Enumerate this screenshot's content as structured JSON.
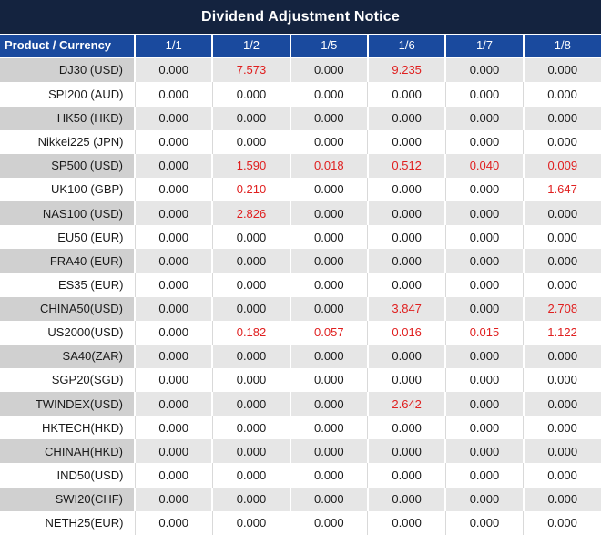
{
  "title": "Dividend Adjustment Notice",
  "colors": {
    "title_bg": "#14233f",
    "header_bg": "#1a4a9e",
    "header_text": "#ffffff",
    "alt_row_label_bg": "#d0d0d0",
    "alt_row_data_bg": "#e6e6e6",
    "white_row_bg": "#ffffff",
    "grid_line": "#d9d9d9",
    "value_text": "#1a1a1a",
    "highlight_red": "#e01f1f"
  },
  "table": {
    "product_header": "Product / Currency",
    "dates": [
      "1/1",
      "1/2",
      "1/5",
      "1/6",
      "1/7",
      "1/8"
    ],
    "rows": [
      {
        "product": "DJ30 (USD)",
        "values": [
          "0.000",
          "7.573",
          "0.000",
          "9.235",
          "0.000",
          "0.000"
        ],
        "red": [
          false,
          true,
          false,
          true,
          false,
          false
        ]
      },
      {
        "product": "SPI200 (AUD)",
        "values": [
          "0.000",
          "0.000",
          "0.000",
          "0.000",
          "0.000",
          "0.000"
        ],
        "red": [
          false,
          false,
          false,
          false,
          false,
          false
        ]
      },
      {
        "product": "HK50 (HKD)",
        "values": [
          "0.000",
          "0.000",
          "0.000",
          "0.000",
          "0.000",
          "0.000"
        ],
        "red": [
          false,
          false,
          false,
          false,
          false,
          false
        ]
      },
      {
        "product": "Nikkei225 (JPN)",
        "values": [
          "0.000",
          "0.000",
          "0.000",
          "0.000",
          "0.000",
          "0.000"
        ],
        "red": [
          false,
          false,
          false,
          false,
          false,
          false
        ]
      },
      {
        "product": "SP500 (USD)",
        "values": [
          "0.000",
          "1.590",
          "0.018",
          "0.512",
          "0.040",
          "0.009"
        ],
        "red": [
          false,
          true,
          true,
          true,
          true,
          true
        ]
      },
      {
        "product": "UK100 (GBP)",
        "values": [
          "0.000",
          "0.210",
          "0.000",
          "0.000",
          "0.000",
          "1.647"
        ],
        "red": [
          false,
          true,
          false,
          false,
          false,
          true
        ]
      },
      {
        "product": "NAS100 (USD)",
        "values": [
          "0.000",
          "2.826",
          "0.000",
          "0.000",
          "0.000",
          "0.000"
        ],
        "red": [
          false,
          true,
          false,
          false,
          false,
          false
        ]
      },
      {
        "product": "EU50 (EUR)",
        "values": [
          "0.000",
          "0.000",
          "0.000",
          "0.000",
          "0.000",
          "0.000"
        ],
        "red": [
          false,
          false,
          false,
          false,
          false,
          false
        ]
      },
      {
        "product": "FRA40 (EUR)",
        "values": [
          "0.000",
          "0.000",
          "0.000",
          "0.000",
          "0.000",
          "0.000"
        ],
        "red": [
          false,
          false,
          false,
          false,
          false,
          false
        ]
      },
      {
        "product": "ES35 (EUR)",
        "values": [
          "0.000",
          "0.000",
          "0.000",
          "0.000",
          "0.000",
          "0.000"
        ],
        "red": [
          false,
          false,
          false,
          false,
          false,
          false
        ]
      },
      {
        "product": "CHINA50(USD)",
        "values": [
          "0.000",
          "0.000",
          "0.000",
          "3.847",
          "0.000",
          "2.708"
        ],
        "red": [
          false,
          false,
          false,
          true,
          false,
          true
        ]
      },
      {
        "product": "US2000(USD)",
        "values": [
          "0.000",
          "0.182",
          "0.057",
          "0.016",
          "0.015",
          "1.122"
        ],
        "red": [
          false,
          true,
          true,
          true,
          true,
          true
        ]
      },
      {
        "product": "SA40(ZAR)",
        "values": [
          "0.000",
          "0.000",
          "0.000",
          "0.000",
          "0.000",
          "0.000"
        ],
        "red": [
          false,
          false,
          false,
          false,
          false,
          false
        ]
      },
      {
        "product": "SGP20(SGD)",
        "values": [
          "0.000",
          "0.000",
          "0.000",
          "0.000",
          "0.000",
          "0.000"
        ],
        "red": [
          false,
          false,
          false,
          false,
          false,
          false
        ]
      },
      {
        "product": "TWINDEX(USD)",
        "values": [
          "0.000",
          "0.000",
          "0.000",
          "2.642",
          "0.000",
          "0.000"
        ],
        "red": [
          false,
          false,
          false,
          true,
          false,
          false
        ]
      },
      {
        "product": "HKTECH(HKD)",
        "values": [
          "0.000",
          "0.000",
          "0.000",
          "0.000",
          "0.000",
          "0.000"
        ],
        "red": [
          false,
          false,
          false,
          false,
          false,
          false
        ]
      },
      {
        "product": "CHINAH(HKD)",
        "values": [
          "0.000",
          "0.000",
          "0.000",
          "0.000",
          "0.000",
          "0.000"
        ],
        "red": [
          false,
          false,
          false,
          false,
          false,
          false
        ]
      },
      {
        "product": "IND50(USD)",
        "values": [
          "0.000",
          "0.000",
          "0.000",
          "0.000",
          "0.000",
          "0.000"
        ],
        "red": [
          false,
          false,
          false,
          false,
          false,
          false
        ]
      },
      {
        "product": "SWI20(CHF)",
        "values": [
          "0.000",
          "0.000",
          "0.000",
          "0.000",
          "0.000",
          "0.000"
        ],
        "red": [
          false,
          false,
          false,
          false,
          false,
          false
        ]
      },
      {
        "product": "NETH25(EUR)",
        "values": [
          "0.000",
          "0.000",
          "0.000",
          "0.000",
          "0.000",
          "0.000"
        ],
        "red": [
          false,
          false,
          false,
          false,
          false,
          false
        ]
      }
    ]
  }
}
